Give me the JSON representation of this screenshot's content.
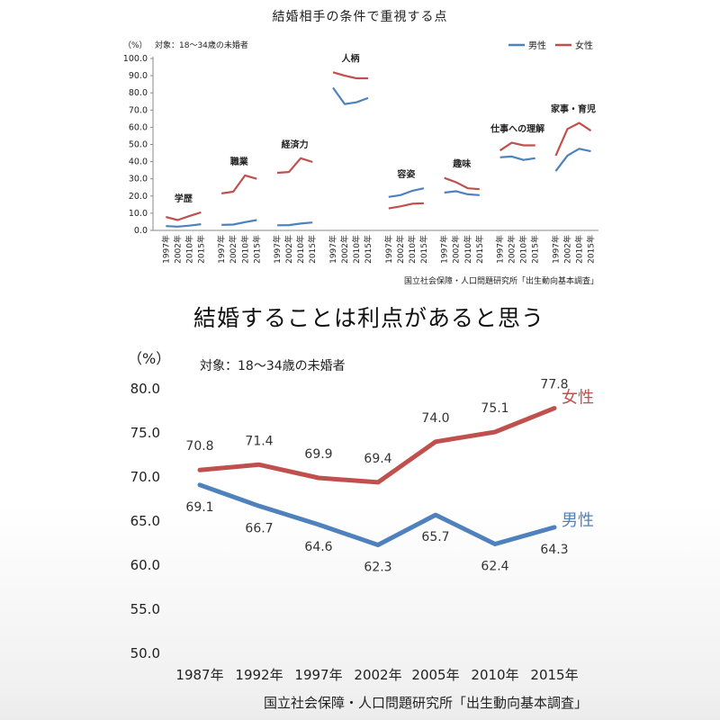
{
  "chart_data": [
    {
      "type": "line",
      "title": "結婚相手の条件で重視する点",
      "unit_label": "（%）",
      "target_note": "対象：18～34歳の未婚者",
      "source": "国立社会保障・人口問題研究所「出生動向基本調査」",
      "ylim": [
        0,
        100
      ],
      "y_ticks": [
        "0.0",
        "10.0",
        "20.0",
        "30.0",
        "40.0",
        "50.0",
        "60.0",
        "70.0",
        "80.0",
        "90.0",
        "100.0"
      ],
      "x_labels": [
        "1997年",
        "2002年",
        "2010年",
        "2015年"
      ],
      "legend": [
        {
          "name": "男性",
          "color": "#4f81bd"
        },
        {
          "name": "女性",
          "color": "#c0504d"
        }
      ],
      "legend_position": "top-right",
      "groups": [
        {
          "label": "学歴",
          "male": [
            2.5,
            2.2,
            2.8,
            3.6
          ],
          "female": [
            7.8,
            6.0,
            8.3,
            10.5
          ]
        },
        {
          "label": "職業",
          "male": [
            3.2,
            3.4,
            4.8,
            6.0
          ],
          "female": [
            21.5,
            22.5,
            32.0,
            30.0
          ]
        },
        {
          "label": "経済力",
          "male": [
            3.0,
            3.1,
            4.0,
            4.6
          ],
          "female": [
            33.5,
            34.0,
            42.0,
            39.8
          ]
        },
        {
          "label": "人柄",
          "male": [
            83.0,
            73.5,
            74.5,
            77.0
          ],
          "female": [
            92.0,
            90.0,
            88.5,
            88.5
          ]
        },
        {
          "label": "容姿",
          "male": [
            19.5,
            20.5,
            23.0,
            24.5
          ],
          "female": [
            12.8,
            14.0,
            15.5,
            15.8
          ]
        },
        {
          "label": "趣味",
          "male": [
            22.0,
            22.8,
            21.0,
            20.5
          ],
          "female": [
            30.5,
            28.0,
            24.5,
            24.0
          ]
        },
        {
          "label": "仕事への理解",
          "male": [
            42.5,
            43.0,
            41.0,
            42.0
          ],
          "female": [
            46.5,
            51.0,
            49.5,
            49.5
          ]
        },
        {
          "label": "家事・育児",
          "male": [
            34.5,
            43.5,
            47.5,
            46.0
          ],
          "female": [
            43.5,
            59.0,
            62.5,
            58.0
          ]
        }
      ]
    },
    {
      "type": "line",
      "title": "結婚することは利点があると思う",
      "unit_label": "（%）",
      "target_note": "対象：18～34歳の未婚者",
      "source": "国立社会保障・人口問題研究所「出生動向基本調査」",
      "ylim": [
        50,
        80
      ],
      "y_ticks": [
        "50.0",
        "55.0",
        "60.0",
        "65.0",
        "70.0",
        "75.0",
        "80.0"
      ],
      "categories": [
        "1987年",
        "1992年",
        "1997年",
        "2002年",
        "2005年",
        "2010年",
        "2015年"
      ],
      "series": [
        {
          "name": "女性",
          "color": "#c0504d",
          "values": [
            70.8,
            71.4,
            69.9,
            69.4,
            74.0,
            75.1,
            77.8
          ],
          "labels": [
            "70.8",
            "71.4",
            "69.9",
            "69.4",
            "74.0",
            "75.1",
            "77.8"
          ]
        },
        {
          "name": "男性",
          "color": "#4f81bd",
          "values": [
            69.1,
            66.7,
            64.6,
            62.3,
            65.7,
            62.4,
            64.3
          ],
          "labels": [
            "69.1",
            "66.7",
            "64.6",
            "62.3",
            "65.7",
            "62.4",
            "64.3"
          ]
        }
      ]
    }
  ]
}
